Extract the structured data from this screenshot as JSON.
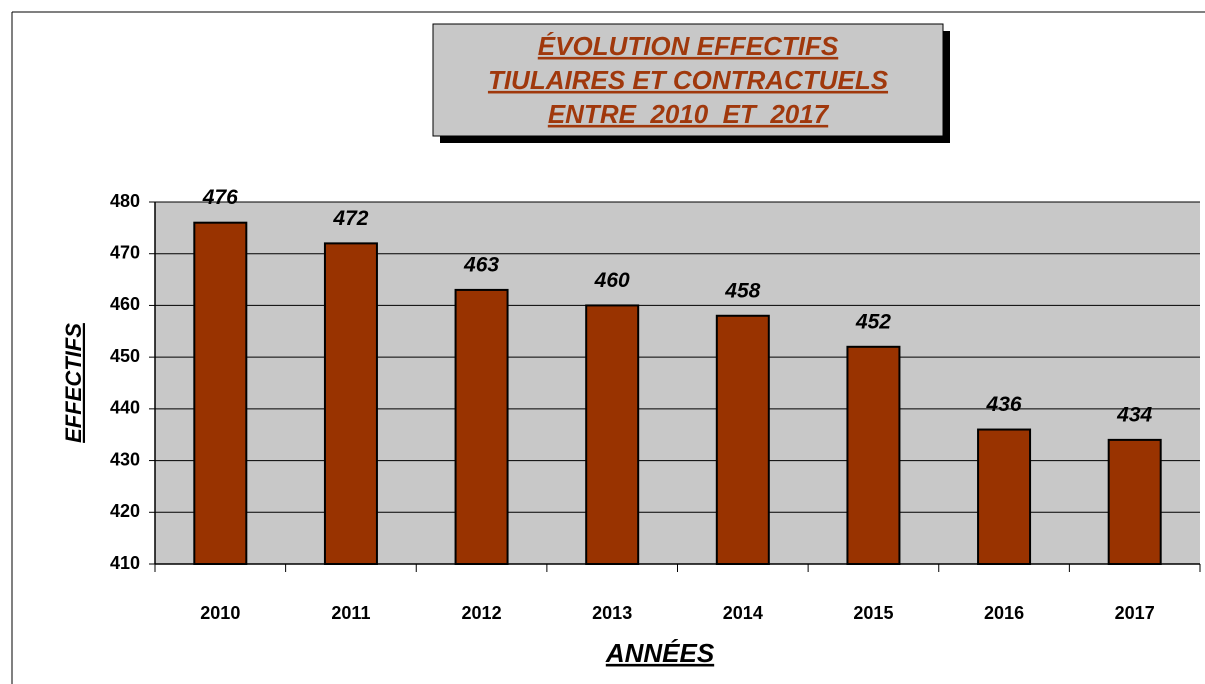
{
  "chart_data": {
    "type": "bar",
    "title": [
      "ÉVOLUTION EFFECTIFS",
      "TIULAIRES ET CONTRACTUELS",
      "ENTRE  2010  ET  2017"
    ],
    "xlabel": "ANNÉES",
    "ylabel": "EFFECTIFS",
    "categories": [
      "2010",
      "2011",
      "2012",
      "2013",
      "2014",
      "2015",
      "2016",
      "2017"
    ],
    "values": [
      476,
      472,
      463,
      460,
      458,
      452,
      436,
      434
    ],
    "color": "#993300",
    "ylim": [
      410,
      480
    ],
    "yticks": [
      410,
      420,
      430,
      440,
      450,
      460,
      470,
      480
    ],
    "grid": true
  }
}
